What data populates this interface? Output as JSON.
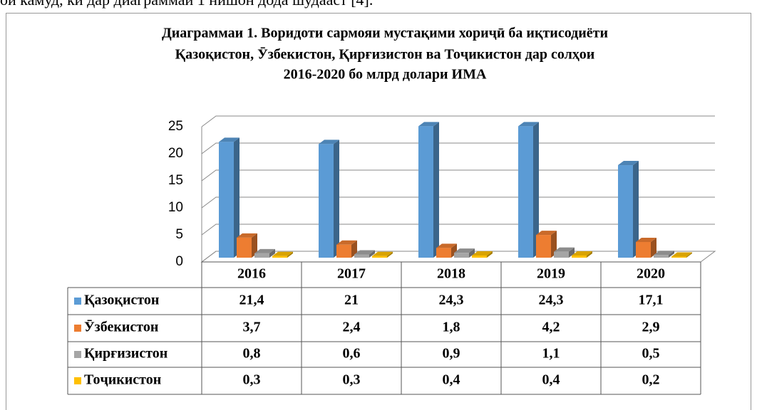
{
  "text_above": "ои камуд, ки дар диаграммаи 1 нишон дода шудааст [4].",
  "chart_data": {
    "type": "bar3d",
    "title": [
      "Диаграммаи 1. Воридоти сармояи мустақими хориҷӣ ба иқтисодиёти",
      "Қазоқистон, Ӯзбекистон, Қирғизистон ва Тоҷикистон дар солҳои",
      "2016-2020 бо млрд долари ИМА"
    ],
    "categories": [
      "2016",
      "2017",
      "2018",
      "2019",
      "2020"
    ],
    "series": [
      {
        "name": "Қазоқистон",
        "color": "#5b9bd5",
        "values": [
          21.4,
          21,
          24.3,
          24.3,
          17.1
        ],
        "value_labels": [
          "21,4",
          "21",
          "24,3",
          "24,3",
          "17,1"
        ]
      },
      {
        "name": "Ӯзбекистон",
        "color": "#ed7d31",
        "values": [
          3.7,
          2.4,
          1.8,
          4.2,
          2.9
        ],
        "value_labels": [
          "3,7",
          "2,4",
          "1,8",
          "4,2",
          "2,9"
        ]
      },
      {
        "name": "Қирғизистон",
        "color": "#a5a5a5",
        "values": [
          0.8,
          0.6,
          0.9,
          1.1,
          0.5
        ],
        "value_labels": [
          "0,8",
          "0,6",
          "0,9",
          "1,1",
          "0,5"
        ]
      },
      {
        "name": "Тоҷикистон",
        "color": "#ffc000",
        "values": [
          0.3,
          0.3,
          0.4,
          0.4,
          0.2
        ],
        "value_labels": [
          "0,3",
          "0,3",
          "0,4",
          "0,4",
          "0,2"
        ]
      }
    ],
    "ylim": [
      0,
      25
    ],
    "yticks": [
      0,
      5,
      10,
      15,
      20,
      25
    ],
    "grid": true
  }
}
